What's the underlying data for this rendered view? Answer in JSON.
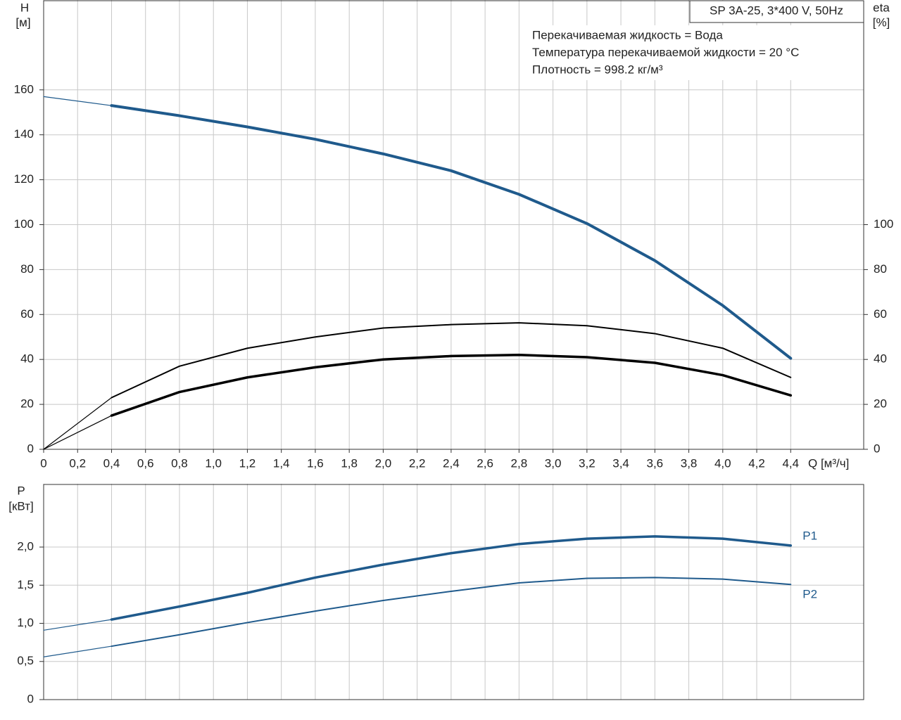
{
  "chart_data": [
    {
      "type": "line",
      "title": "SP 3A-25, 3*400 V, 50Hz",
      "annotations": [
        "Перекачиваемая жидкость = Вода",
        "Температура перекачиваемой жидкости = 20 °C",
        "Плотность = 998.2 кг/м³"
      ],
      "ylabel": "H",
      "yunit": "[м]",
      "y2label": "eta",
      "y2unit": "[%]",
      "xlabel": "Q [м³/ч]",
      "x": [
        0,
        0.4,
        0.8,
        1.2,
        1.6,
        2.0,
        2.4,
        2.8,
        3.2,
        3.6,
        4.0,
        4.4
      ],
      "xlim": [
        0,
        4.83
      ],
      "xticks": [
        0,
        {
          "value": 0.2,
          "label": "0,2"
        },
        {
          "value": 0.4,
          "label": "0,4"
        },
        {
          "value": 0.6,
          "label": "0,6"
        },
        {
          "value": 0.8,
          "label": "0,8"
        },
        {
          "value": 1.0,
          "label": "1,0"
        },
        {
          "value": 1.2,
          "label": "1,2"
        },
        {
          "value": 1.4,
          "label": "1,4"
        },
        {
          "value": 1.6,
          "label": "1,6"
        },
        {
          "value": 1.8,
          "label": "1,8"
        },
        {
          "value": 2.0,
          "label": "2,0"
        },
        {
          "value": 2.2,
          "label": "2,2"
        },
        {
          "value": 2.4,
          "label": "2,4"
        },
        {
          "value": 2.6,
          "label": "2,6"
        },
        {
          "value": 2.8,
          "label": "2,8"
        },
        {
          "value": 3.0,
          "label": "3,0"
        },
        {
          "value": 3.2,
          "label": "3,2"
        },
        {
          "value": 3.4,
          "label": "3,4"
        },
        {
          "value": 3.6,
          "label": "3,6"
        },
        {
          "value": 3.8,
          "label": "3,8"
        },
        {
          "value": 4.0,
          "label": "4,0"
        },
        {
          "value": 4.2,
          "label": "4,2"
        },
        {
          "value": 4.4,
          "label": "4,4"
        }
      ],
      "ylim": [
        0,
        200
      ],
      "yticks": [
        0,
        20,
        40,
        60,
        80,
        100,
        120,
        140,
        160
      ],
      "y2lim": [
        0,
        200
      ],
      "y2ticks": [
        0,
        20,
        40,
        60,
        80,
        100
      ],
      "grid": true,
      "series": [
        {
          "color": "#1f5a8c",
          "width": 4,
          "values": [
            157,
            153,
            148.5,
            143.5,
            138,
            131.5,
            124,
            113.5,
            100.5,
            84,
            64,
            40.5
          ]
        },
        {
          "color": "#000000",
          "width": 2,
          "axis": "y2",
          "values": [
            0,
            23,
            37,
            45,
            50,
            54,
            55.5,
            56.3,
            55,
            51.5,
            45,
            32
          ]
        },
        {
          "color": "#000000",
          "width": 3.5,
          "axis": "y2",
          "values": [
            0,
            15,
            25.5,
            32,
            36.5,
            40,
            41.5,
            42,
            41,
            38.5,
            33,
            24
          ]
        }
      ]
    },
    {
      "type": "line",
      "ylabel": "P",
      "yunit": "[кВт]",
      "x": [
        0,
        0.4,
        0.8,
        1.2,
        1.6,
        2.0,
        2.4,
        2.8,
        3.2,
        3.6,
        4.0,
        4.4
      ],
      "xlim": [
        0,
        4.83
      ],
      "ylim": [
        0,
        2.83
      ],
      "yticks": [
        0,
        {
          "value": 0.5,
          "label": "0,5"
        },
        {
          "value": 1.0,
          "label": "1,0"
        },
        {
          "value": 1.5,
          "label": "1,5"
        },
        {
          "value": 2.0,
          "label": "2,0"
        }
      ],
      "grid": true,
      "series": [
        {
          "name": "P1",
          "color": "#1f5a8c",
          "width": 3.5,
          "values": [
            0.91,
            1.05,
            1.22,
            1.4,
            1.6,
            1.77,
            1.92,
            2.04,
            2.11,
            2.14,
            2.11,
            2.02
          ]
        },
        {
          "name": "P2",
          "color": "#1f5a8c",
          "width": 2,
          "values": [
            0.56,
            0.7,
            0.85,
            1.01,
            1.16,
            1.3,
            1.42,
            1.53,
            1.59,
            1.6,
            1.58,
            1.51
          ]
        }
      ]
    }
  ]
}
